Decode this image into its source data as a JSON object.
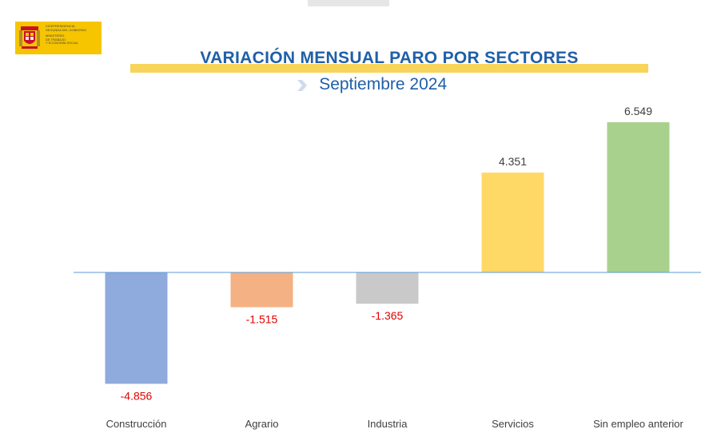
{
  "logo": {
    "line1": "VICEPRESIDENCIA",
    "line2": "SEGUNDA DEL GOBIERNO",
    "line3": "MINISTERIO",
    "line4": "DE TRABAJO",
    "line5": "Y ECONOMÍA SOCIAL"
  },
  "header": {
    "title": "VARIACIÓN MENSUAL PARO POR SECTORES",
    "subtitle": "Septiembre 2024"
  },
  "colors": {
    "title": "#1f5fa8",
    "band": "#f8d45a",
    "negative_label": "#e00000",
    "positive_label": "#404040"
  },
  "chart_data": {
    "type": "bar",
    "title": "VARIACIÓN MENSUAL PARO POR SECTORES",
    "subtitle": "Septiembre 2024",
    "categories": [
      "Construcción",
      "Agrario",
      "Industria",
      "Servicios",
      "Sin empleo anterior"
    ],
    "values": [
      -4856,
      -1515,
      -1365,
      4351,
      6549
    ],
    "value_labels": [
      "-4.856",
      "-1.515",
      "-1.365",
      "4.351",
      "6.549"
    ],
    "bar_colors": [
      "#8faadc",
      "#f4b183",
      "#c9c9c9",
      "#ffd966",
      "#a9d18e"
    ],
    "ylim": [
      -5000,
      7000
    ],
    "grid": false,
    "legend": "none"
  }
}
